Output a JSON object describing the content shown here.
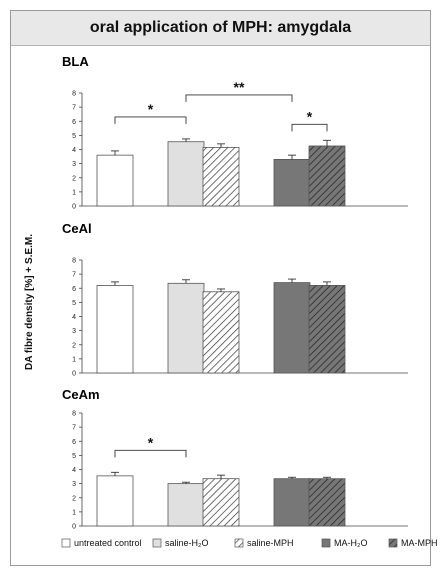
{
  "title": "oral application of MPH: amygdala",
  "colors": {
    "untreated": "#ffffff",
    "saline": "#e0e0e0",
    "ma": "#777777",
    "hatch": "#333333",
    "outline": "#555555"
  },
  "chart_data": {
    "type": "bar",
    "ylabel": "DA fibre density [%] + S.E.M.",
    "grid": false,
    "legend_position": "bottom",
    "groups": [
      {
        "name": "untreated control",
        "fill": "white",
        "hatched": false
      },
      {
        "name": "saline-H₂O",
        "fill": "lightgray",
        "hatched": false
      },
      {
        "name": "saline-MPH",
        "fill": "white",
        "hatched": true
      },
      {
        "name": "MA-H₂O",
        "fill": "darkgray",
        "hatched": false
      },
      {
        "name": "MA-MPH",
        "fill": "darkgray",
        "hatched": true
      }
    ],
    "panels": [
      {
        "name": "BLA",
        "ylim": [
          0,
          8
        ],
        "yticks": [
          "0",
          "1",
          "2",
          "3",
          "4",
          "5",
          "6",
          "7",
          "8"
        ],
        "values": [
          3.6,
          4.55,
          4.15,
          3.3,
          4.25
        ],
        "errors": [
          0.3,
          0.2,
          0.25,
          0.3,
          0.4
        ],
        "significance": [
          {
            "from": 0,
            "to": 1,
            "label": "*"
          },
          {
            "from": 1,
            "to": 3,
            "label": "**"
          },
          {
            "from": 3,
            "to": 4,
            "label": "*"
          }
        ]
      },
      {
        "name": "CeAl",
        "ylim": [
          0,
          8
        ],
        "yticks": [
          "0",
          "1",
          "2",
          "3",
          "4",
          "5",
          "6",
          "7",
          "8"
        ],
        "values": [
          6.2,
          6.35,
          5.75,
          6.4,
          6.2
        ],
        "errors": [
          0.25,
          0.25,
          0.2,
          0.25,
          0.25
        ],
        "significance": []
      },
      {
        "name": "CeAm",
        "ylim": [
          0,
          8
        ],
        "yticks": [
          "0",
          "1",
          "2",
          "3",
          "4",
          "5",
          "6",
          "7",
          "8"
        ],
        "values": [
          3.55,
          3.0,
          3.35,
          3.35,
          3.35
        ],
        "errors": [
          0.25,
          0.1,
          0.25,
          0.1,
          0.1
        ],
        "significance": [
          {
            "from": 0,
            "to": 1,
            "label": "*"
          }
        ]
      }
    ]
  }
}
